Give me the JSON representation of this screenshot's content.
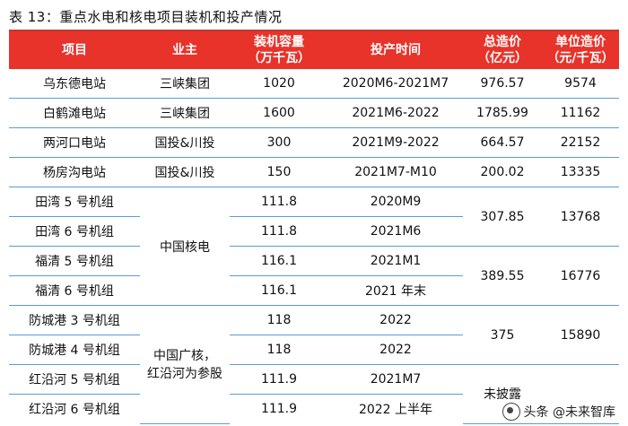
{
  "caption": "表 13：重点水电和核电项目装机和投产情况",
  "headers": {
    "project": "项目",
    "owner": "业主",
    "capacity_line1": "装机容量",
    "capacity_line2": "（万千瓦）",
    "commission": "投产时间",
    "cost_line1": "总造价",
    "cost_line2": "（亿元）",
    "unit_line1": "单位造价",
    "unit_line2": "（元/千瓦）"
  },
  "rows": [
    {
      "project": "乌东德电站",
      "owner": "三峡集团",
      "capacity": "1020",
      "time": "2020M6-2021M7",
      "cost": "976.57",
      "unit": "9574"
    },
    {
      "project": "白鹤滩电站",
      "owner": "三峡集团",
      "capacity": "1600",
      "time": "2021M6-2022",
      "cost": "1785.99",
      "unit": "11162"
    },
    {
      "project": "两河口电站",
      "owner": "国投&川投",
      "capacity": "300",
      "time": "2021M9-2022",
      "cost": "664.57",
      "unit": "22152"
    },
    {
      "project": "杨房沟电站",
      "owner": "国投&川投",
      "capacity": "150",
      "time": "2021M7-M10",
      "cost": "200.02",
      "unit": "13335"
    },
    {
      "project": "田湾 5 号机组",
      "capacity": "111.8",
      "time": "2020M9"
    },
    {
      "project": "田湾 6 号机组",
      "capacity": "111.8",
      "time": "2021M6"
    },
    {
      "project": "福清 5 号机组",
      "capacity": "116.1",
      "time": "2021M1"
    },
    {
      "project": "福清 6 号机组",
      "capacity": "116.1",
      "time": "2021 年末"
    },
    {
      "project": "防城港 3 号机组",
      "capacity": "118",
      "time": "2022"
    },
    {
      "project": "防城港 4 号机组",
      "capacity": "118",
      "time": "2022"
    },
    {
      "project": "红沿河 5 号机组",
      "capacity": "111.9",
      "time": "2021M7"
    },
    {
      "project": "红沿河 6 号机组",
      "capacity": "111.9",
      "time": "2022 上半年"
    }
  ],
  "merged": {
    "cnnc_owner": "中国核电",
    "cgn_owner_line1": "中国广核，",
    "cgn_owner_line2": "红沿河为参股",
    "tianwan_cost": "307.85",
    "tianwan_unit": "13768",
    "fuqing_cost": "389.55",
    "fuqing_unit": "16776",
    "fcg_cost": "375",
    "fcg_unit": "15890",
    "hyh_cost": "未披露"
  },
  "watermark": "头条 @未来智库"
}
